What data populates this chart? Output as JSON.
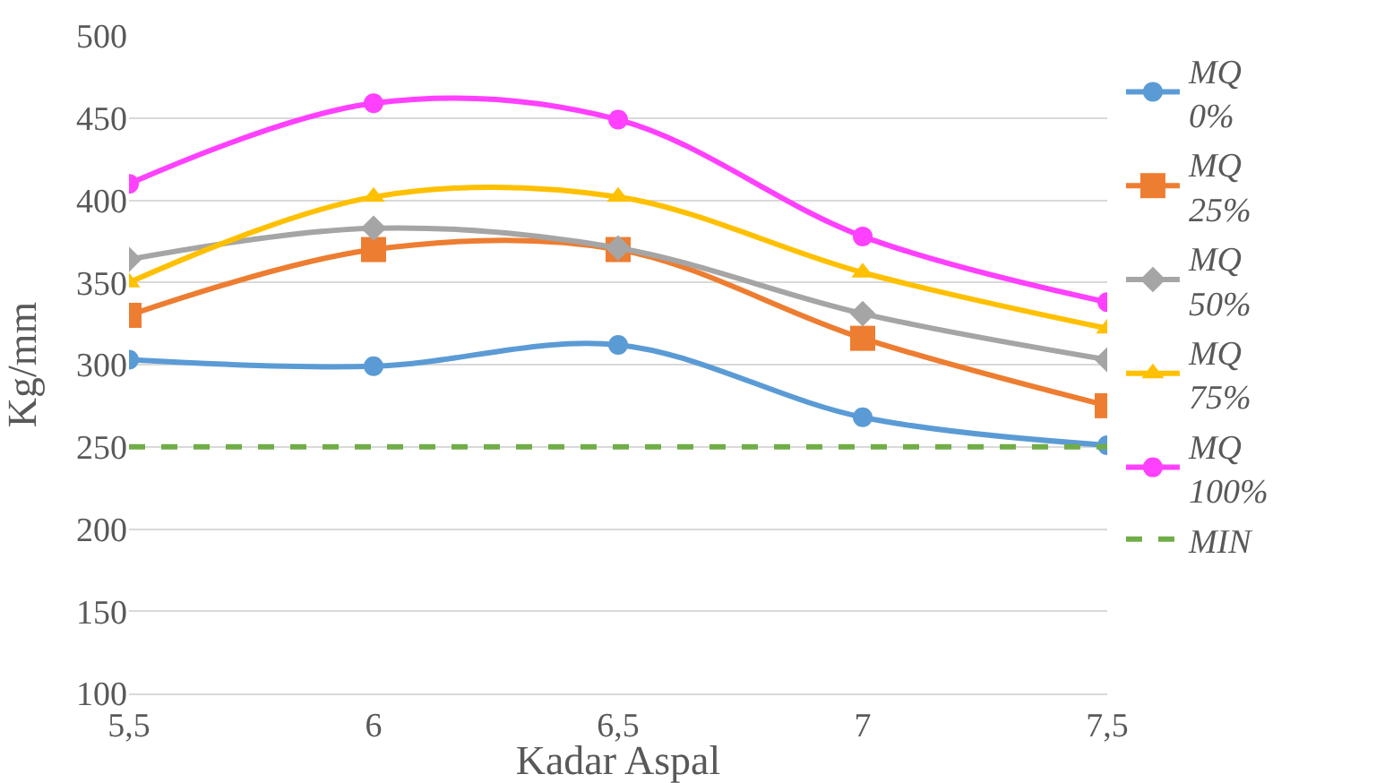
{
  "chart_data": {
    "type": "line",
    "xlabel": "Kadar Aspal",
    "ylabel": "Kg/mm",
    "x": [
      5.5,
      6,
      6.5,
      7,
      7.5
    ],
    "xlim": [
      5.5,
      7.5
    ],
    "xticks": [
      {
        "value": 5.5,
        "label": "5,5"
      },
      6,
      {
        "value": 6.5,
        "label": "6,5"
      },
      7,
      {
        "value": 7.5,
        "label": "7,5"
      }
    ],
    "ylim": [
      100,
      500
    ],
    "yticks": [
      100,
      150,
      200,
      250,
      300,
      350,
      400,
      450,
      500
    ],
    "grid": "y",
    "legend": "right",
    "series": [
      {
        "name": "MQ 0%",
        "color": "#5b9bd5",
        "marker": "circle",
        "values": [
          303,
          299,
          312,
          268,
          251
        ]
      },
      {
        "name": "MQ 25%",
        "color": "#ed7d31",
        "marker": "square",
        "values": [
          330,
          370,
          370,
          316,
          275
        ]
      },
      {
        "name": "MQ 50%",
        "color": "#a5a5a5",
        "marker": "diamond",
        "values": [
          364,
          383,
          371,
          331,
          303
        ]
      },
      {
        "name": "MQ 75%",
        "color": "#ffc000",
        "marker": "triangle",
        "values": [
          350,
          402,
          402,
          356,
          322
        ]
      },
      {
        "name": "MQ 100%",
        "color": "#ff40ff",
        "marker": "circle",
        "values": [
          410,
          459,
          449,
          378,
          338
        ]
      },
      {
        "name": "MIN",
        "color": "#70ad47",
        "marker": "none",
        "line_style": "dashed",
        "values": [
          250,
          250,
          250,
          250,
          250
        ]
      }
    ]
  }
}
